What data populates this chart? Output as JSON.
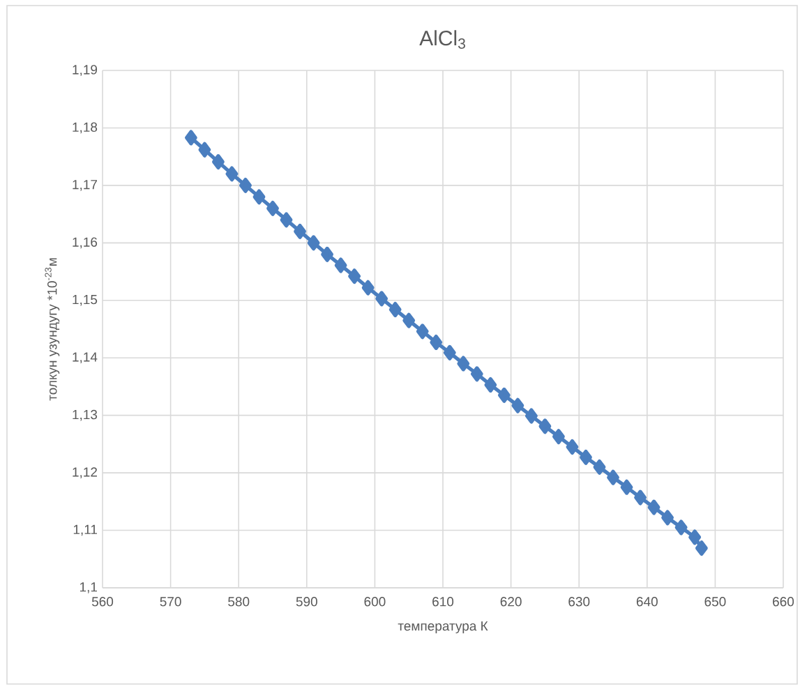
{
  "chart_data": {
    "type": "line",
    "title": "AlCl$_{3}$",
    "xlabel": "температура К",
    "ylabel": "толкун узундугу *10$^{-23}$м",
    "x": [
      573,
      575,
      577,
      579,
      581,
      583,
      585,
      587,
      589,
      591,
      593,
      595,
      597,
      599,
      601,
      603,
      605,
      607,
      609,
      611,
      613,
      615,
      617,
      619,
      621,
      623,
      625,
      627,
      629,
      631,
      633,
      635,
      637,
      639,
      641,
      643,
      645,
      647,
      648
    ],
    "series": [
      {
        "color": "#4a7ebf",
        "values": [
          1.1783,
          1.1762,
          1.1741,
          1.172,
          1.17,
          1.168,
          1.166,
          1.164,
          1.162,
          1.16,
          1.158,
          1.1561,
          1.1542,
          1.1522,
          1.1503,
          1.1484,
          1.1465,
          1.1446,
          1.1427,
          1.1409,
          1.139,
          1.1372,
          1.1353,
          1.1335,
          1.1317,
          1.1299,
          1.1281,
          1.1263,
          1.1245,
          1.1227,
          1.121,
          1.1192,
          1.1175,
          1.1157,
          1.114,
          1.1122,
          1.1105,
          1.1088,
          1.1069
        ]
      }
    ],
    "xlim": [
      560,
      660
    ],
    "ylim": [
      1.1,
      1.19
    ],
    "xticks": [
      560,
      570,
      580,
      590,
      600,
      610,
      620,
      630,
      640,
      650,
      660
    ],
    "yticks": [
      {
        "value": 1.1,
        "label": "1,1"
      },
      {
        "value": 1.11,
        "label": "1,11"
      },
      {
        "value": 1.12,
        "label": "1,12"
      },
      {
        "value": 1.13,
        "label": "1,13"
      },
      {
        "value": 1.14,
        "label": "1,14"
      },
      {
        "value": 1.15,
        "label": "1,15"
      },
      {
        "value": 1.16,
        "label": "1,16"
      },
      {
        "value": 1.17,
        "label": "1,17"
      },
      {
        "value": 1.18,
        "label": "1,18"
      },
      {
        "value": 1.19,
        "label": "1,19"
      }
    ],
    "grid": true,
    "marker": "diamond",
    "line_style": "solid"
  }
}
